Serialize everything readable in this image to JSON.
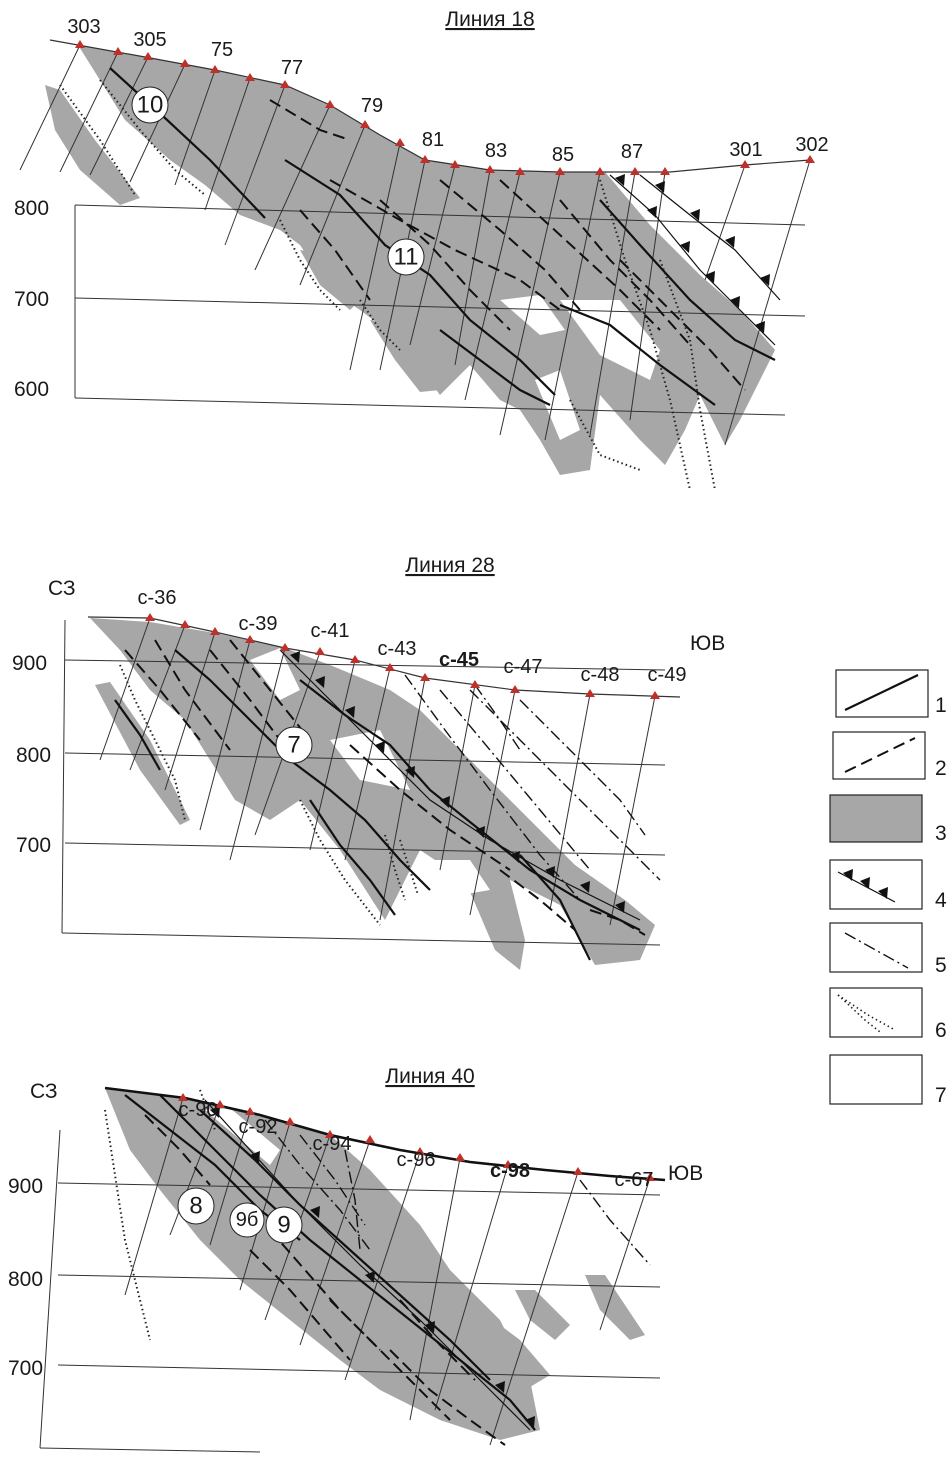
{
  "sections": [
    {
      "id": "line18",
      "title": "Линия 18",
      "elevations": [
        "800",
        "700",
        "600"
      ],
      "wells": [
        "303",
        "305",
        "75",
        "77",
        "79",
        "81",
        "83",
        "85",
        "87",
        "301",
        "302"
      ],
      "ore_bodies": [
        "10",
        "11"
      ]
    },
    {
      "id": "line28",
      "title": "Линия 28",
      "directions": {
        "left": "СЗ",
        "right": "ЮВ"
      },
      "elevations": [
        "900",
        "800",
        "700"
      ],
      "wells": [
        "с-36",
        "с-39",
        "с-41",
        "с-43",
        "с-45",
        "с-47",
        "с-48",
        "с-49"
      ],
      "ore_bodies": [
        "7"
      ]
    },
    {
      "id": "line40",
      "title": "Линия 40",
      "directions": {
        "left": "СЗ",
        "right": "ЮВ"
      },
      "elevations": [
        "900",
        "800",
        "700"
      ],
      "wells": [
        "с-90",
        "с-92",
        "с-94",
        "с-96",
        "с-98",
        "с-67"
      ],
      "ore_bodies": [
        "8",
        "9б",
        "9"
      ]
    }
  ],
  "legend": [
    "1",
    "2",
    "3",
    "4",
    "5",
    "6",
    "7"
  ],
  "colors": {
    "ore_fill": "#a7a7a7",
    "well_marker": "#c0302a",
    "line": "#111111"
  }
}
